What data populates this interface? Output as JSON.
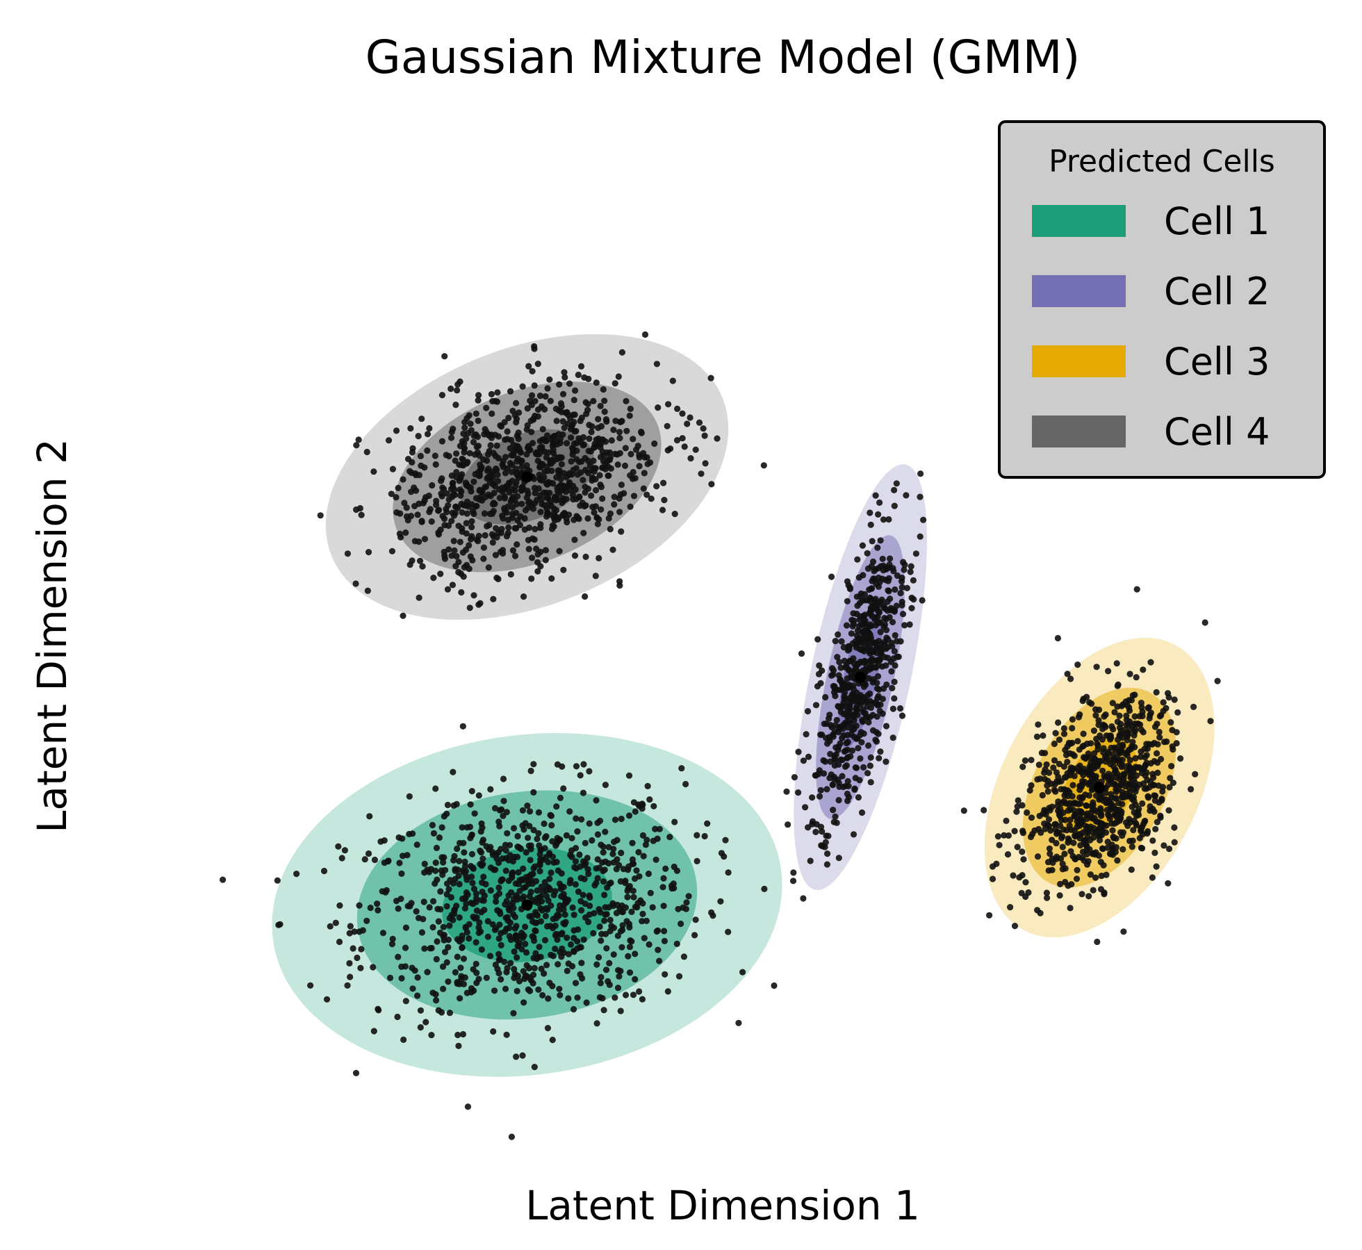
{
  "chart_data": {
    "type": "scatter",
    "title": "Gaussian Mixture Model (GMM)",
    "xlabel": "Latent Dimension 1",
    "ylabel": "Latent Dimension 2",
    "xlim": [
      -8.2,
      8.2
    ],
    "ylim": [
      -7.4,
      7.8
    ],
    "ticks_visible": false,
    "grid": false,
    "legend": {
      "title": "Predicted Cells",
      "placement": "upper right",
      "entries": [
        "Cell 1",
        "Cell 2",
        "Cell 3",
        "Cell 4"
      ]
    },
    "point_color": "#111111",
    "components": [
      {
        "name": "Cell 1",
        "color": "#1b9e77",
        "mean": [
          -2.7,
          -3.8
        ],
        "sigma_x": 1.18,
        "sigma_y": 0.82,
        "angle_deg": 8,
        "n_points": 900
      },
      {
        "name": "Cell 2",
        "color": "#7570b3",
        "mean": [
          1.9,
          -0.5
        ],
        "sigma_x": 0.23,
        "sigma_y": 1.05,
        "angle_deg": -12,
        "n_points": 600
      },
      {
        "name": "Cell 3",
        "color": "#e6ab02",
        "mean": [
          5.2,
          -2.1
        ],
        "sigma_x": 0.45,
        "sigma_y": 0.78,
        "angle_deg": -28,
        "n_points": 800
      },
      {
        "name": "Cell 4",
        "color": "#666666",
        "mean": [
          -2.7,
          2.4
        ],
        "sigma_x": 0.97,
        "sigma_y": 0.62,
        "angle_deg": 22,
        "n_points": 900
      }
    ],
    "sigma_levels": [
      1,
      2,
      3
    ],
    "sigma_level_opacity": [
      0.75,
      0.5,
      0.25
    ]
  }
}
